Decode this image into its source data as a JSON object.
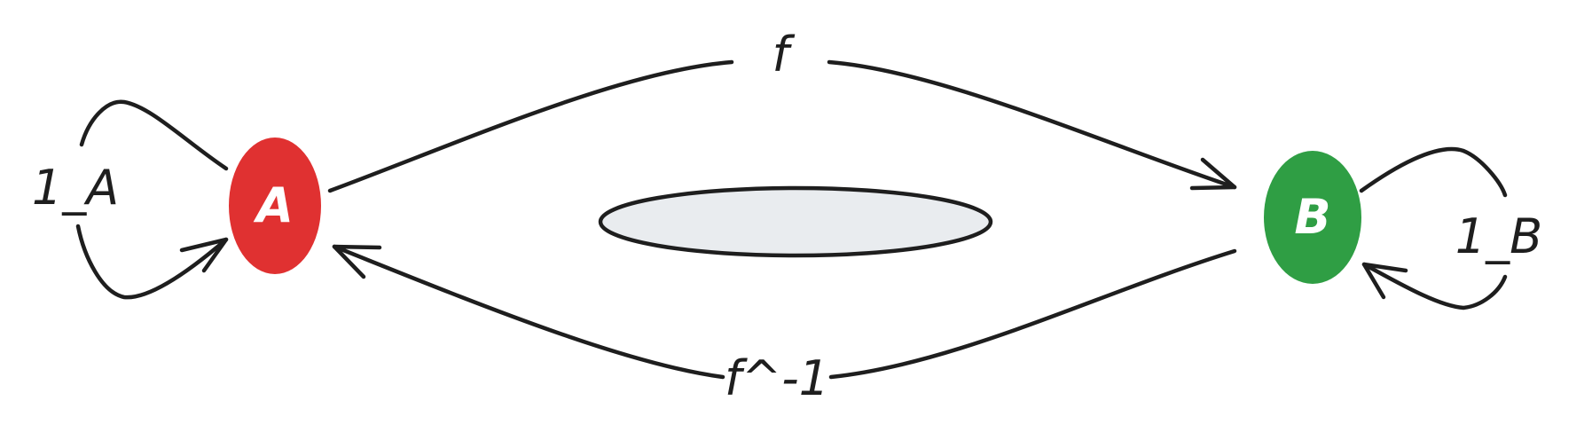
{
  "nodes": {
    "a": {
      "label": "A",
      "fill": "#e03131"
    },
    "b": {
      "label": "B",
      "fill": "#2f9e44"
    }
  },
  "edges": {
    "forward_label": "f",
    "inverse_label": "f^-1",
    "identity_a_label": "1_A",
    "identity_b_label": "1_B"
  },
  "center_shape": {
    "fill": "#e9ecef",
    "stroke": "#1e1e1e"
  },
  "stroke_color": "#1e1e1e"
}
